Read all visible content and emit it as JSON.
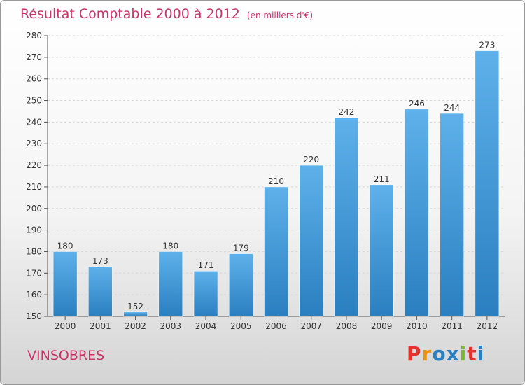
{
  "header": {
    "title": "Résultat Comptable 2000 à 2012",
    "subtitle": "(en milliers d'€)"
  },
  "footer": {
    "city": "VINSOBRES",
    "logo": "Proxiti"
  },
  "colors": {
    "title": "#cc3366",
    "bar_light": "#5eb1ea",
    "bar_dark": "#2a7fc0",
    "logo_letters": [
      "#e3312d",
      "#f39200",
      "#2a7fc0",
      "#2a7fc0",
      "#77b82a",
      "#e3312d",
      "#2a7fc0"
    ]
  },
  "chart_data": {
    "type": "bar",
    "categories": [
      "2000",
      "2001",
      "2002",
      "2003",
      "2004",
      "2005",
      "2006",
      "2007",
      "2008",
      "2009",
      "2010",
      "2011",
      "2012"
    ],
    "values": [
      180,
      173,
      152,
      180,
      171,
      179,
      210,
      220,
      242,
      211,
      246,
      244,
      273
    ],
    "data_labels": [
      "180",
      "173",
      "152",
      "180",
      "171",
      "179",
      "210",
      "220",
      "242",
      "211",
      "246",
      "244",
      "273"
    ],
    "title": "Résultat Comptable 2000 à 2012",
    "xlabel": "",
    "ylabel": "",
    "ylim": [
      150,
      280
    ],
    "yticks": [
      150,
      160,
      170,
      180,
      190,
      200,
      210,
      220,
      230,
      240,
      250,
      260,
      270,
      280
    ],
    "grid": true,
    "legend": "none"
  }
}
